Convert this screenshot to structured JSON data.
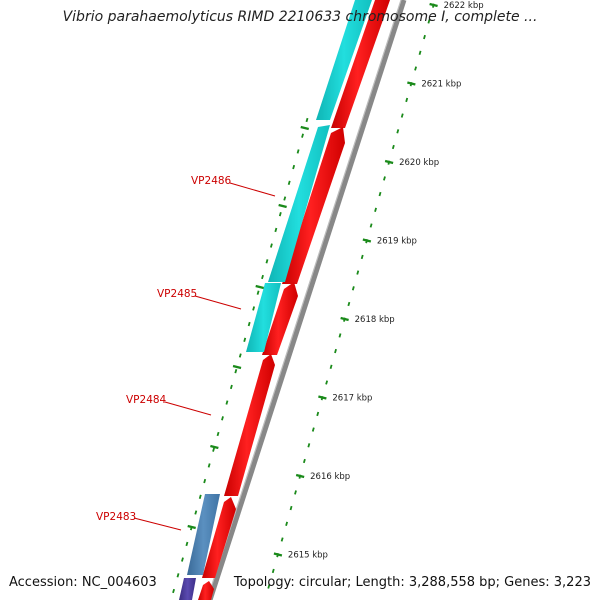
{
  "map": {
    "title": "Vibrio parahaemolyticus RIMD 2210633 chromosome I, complete ...",
    "accession": "Accession: NC_004603",
    "summary": "Topology: circular; Length: 3,288,558 bp; Genes: 3,223",
    "ticks": [
      {
        "label": "2622 kbp"
      },
      {
        "label": "2621 kbp"
      },
      {
        "label": "2620 kbp"
      },
      {
        "label": "2619 kbp"
      },
      {
        "label": "2618 kbp"
      },
      {
        "label": "2617 kbp"
      },
      {
        "label": "2616 kbp"
      },
      {
        "label": "2615 kbp"
      }
    ],
    "gene_labels": [
      {
        "label": "VP2486"
      },
      {
        "label": "VP2485"
      },
      {
        "label": "VP2484"
      },
      {
        "label": "VP2483"
      }
    ],
    "colors": {
      "forward_cds": "#ff0000",
      "reverse_cds_cyan": "#14cccc",
      "reverse_cds_steel": "#4a7fb0",
      "reverse_cds_purple": "#4a3a9a",
      "backbone": "#808080",
      "tick": "#1a8a1a",
      "gene_label": "#cc0000"
    }
  }
}
